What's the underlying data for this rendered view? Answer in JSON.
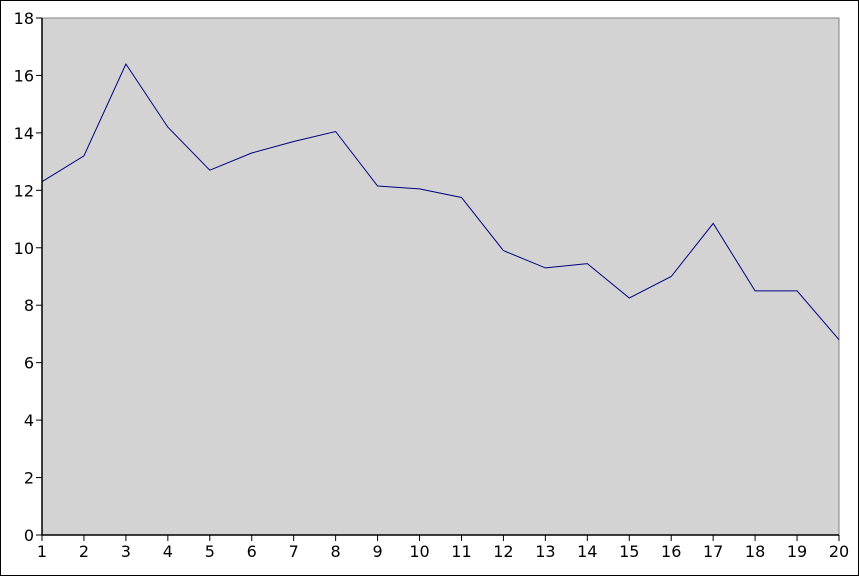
{
  "chart_data": {
    "type": "line",
    "title": "",
    "xlabel": "",
    "ylabel": "",
    "x": [
      1,
      2,
      3,
      4,
      5,
      6,
      7,
      8,
      9,
      10,
      11,
      12,
      13,
      14,
      15,
      16,
      17,
      18,
      19,
      20
    ],
    "series": [
      {
        "values": [
          12.3,
          13.2,
          16.4,
          14.2,
          12.7,
          13.3,
          13.7,
          14.05,
          12.15,
          12.05,
          11.75,
          9.9,
          9.3,
          9.45,
          8.25,
          9.0,
          10.85,
          8.5,
          8.5,
          6.8
        ]
      }
    ],
    "xlim": [
      1,
      20
    ],
    "ylim": [
      0,
      18
    ],
    "yticks": [
      "0",
      "2",
      "4",
      "6",
      "8",
      "10",
      "12",
      "14",
      "16",
      "18"
    ],
    "xticks": [
      "1",
      "2",
      "3",
      "4",
      "5",
      "6",
      "7",
      "8",
      "9",
      "10",
      "11",
      "12",
      "13",
      "14",
      "15",
      "16",
      "17",
      "18",
      "19",
      "20"
    ],
    "grid": false,
    "legend": "none",
    "colors": {
      "plot_background": "#d3d3d3",
      "line": "#000080",
      "axis": "#000000",
      "frame": "#808080"
    }
  }
}
